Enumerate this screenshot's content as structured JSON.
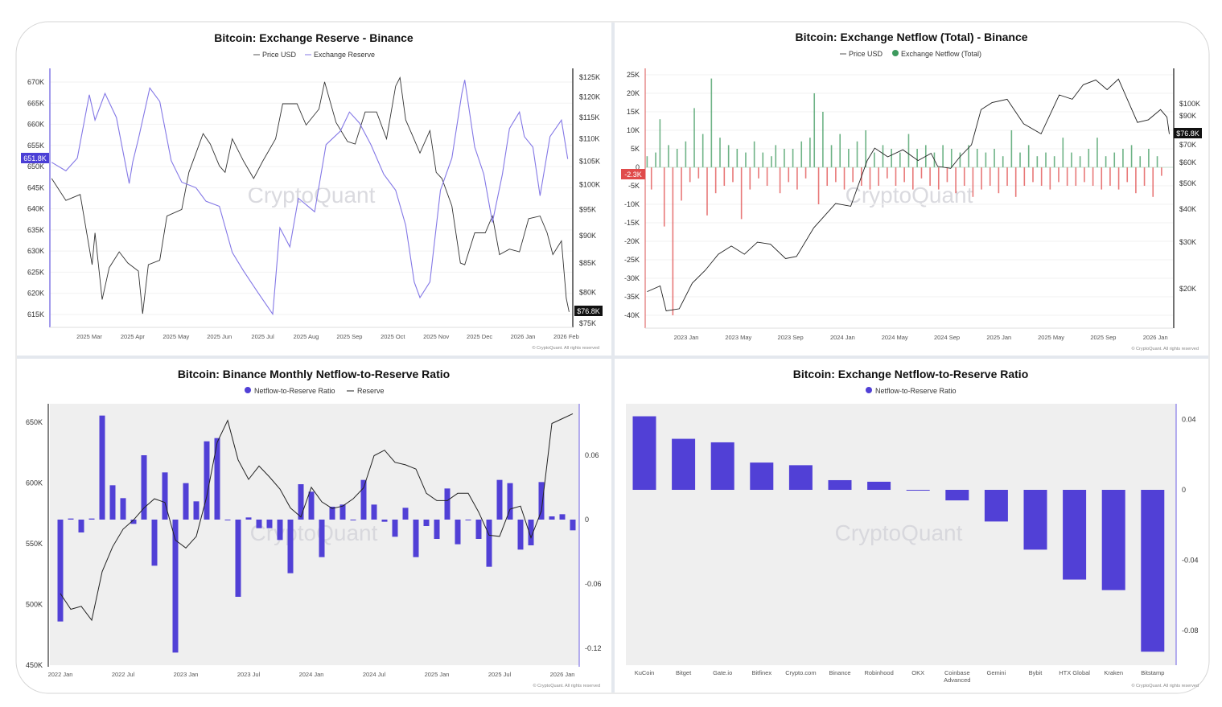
{
  "watermark": "CryptoQuant",
  "copyright": "© CryptoQuant. All rights reserved",
  "colors": {
    "purple_line": "#8478e6",
    "purple_bar": "#5140d6",
    "inflow_green": "#3d9a5e",
    "outflow_red": "#e04b4b",
    "price_line": "#222222"
  },
  "chart_data": [
    {
      "type": "line",
      "title": "Bitcoin: Exchange Reserve - Binance",
      "legend": [
        "Price USD",
        "Exchange Reserve"
      ],
      "legend_placement": "top",
      "x_ticks": [
        "2025 Mar",
        "2025 Apr",
        "2025 May",
        "2025 Jun",
        "2025 Jul",
        "2025 Aug",
        "2025 Sep",
        "2025 Oct",
        "2025 Nov",
        "2025 Dec",
        "2026 Jan",
        "2026 Feb"
      ],
      "y_left_ticks": [
        "670K",
        "665K",
        "660K",
        "655K",
        "650K",
        "645K",
        "640K",
        "635K",
        "630K",
        "625K",
        "620K",
        "615K"
      ],
      "y_right_ticks": [
        "$125K",
        "$120K",
        "$115K",
        "$110K",
        "$105K",
        "$100K",
        "$95K",
        "$90K",
        "$85K",
        "$80K",
        "$75K"
      ],
      "y_left_range_k": [
        615,
        670
      ],
      "y_right_range_k": [
        75,
        125
      ],
      "y_right_scale": "log",
      "current_reserve_label": "651.8K",
      "current_price_label": "$76.8K",
      "series": [
        {
          "name": "Exchange Reserve",
          "axis": "left",
          "unit": "K BTC",
          "points": [
            [
              "2025-02-05",
              651
            ],
            [
              "2025-02-15",
              649
            ],
            [
              "2025-02-23",
              652
            ],
            [
              "2025-03-01",
              667
            ],
            [
              "2025-03-05",
              661
            ],
            [
              "2025-03-12",
              667.3
            ],
            [
              "2025-03-20",
              661.6
            ],
            [
              "2025-03-29",
              646
            ],
            [
              "2025-04-01",
              651
            ],
            [
              "2025-04-05",
              656.5
            ],
            [
              "2025-04-13",
              668.6
            ],
            [
              "2025-04-20",
              665.4
            ],
            [
              "2025-04-28",
              651.4
            ],
            [
              "2025-05-05",
              646.3
            ],
            [
              "2025-05-15",
              645
            ],
            [
              "2025-05-22",
              641.8
            ],
            [
              "2025-06-01",
              640.6
            ],
            [
              "2025-06-10",
              629.7
            ],
            [
              "2025-06-18",
              625.3
            ],
            [
              "2025-06-28",
              620.2
            ],
            [
              "2025-07-08",
              615.1
            ],
            [
              "2025-07-13",
              635.5
            ],
            [
              "2025-07-20",
              631
            ],
            [
              "2025-07-26",
              642.5
            ],
            [
              "2025-08-07",
              639.3
            ],
            [
              "2025-08-15",
              655.2
            ],
            [
              "2025-08-25",
              658.4
            ],
            [
              "2025-09-01",
              662.9
            ],
            [
              "2025-09-08",
              660.3
            ],
            [
              "2025-09-16",
              655.2
            ],
            [
              "2025-09-25",
              648.2
            ],
            [
              "2025-10-03",
              644.4
            ],
            [
              "2025-10-10",
              636.1
            ],
            [
              "2025-10-16",
              622.7
            ],
            [
              "2025-10-20",
              619
            ],
            [
              "2025-10-27",
              622.7
            ],
            [
              "2025-11-04",
              644.4
            ],
            [
              "2025-11-12",
              652
            ],
            [
              "2025-11-19",
              667.3
            ],
            [
              "2025-11-21",
              670.5
            ],
            [
              "2025-11-28",
              654.6
            ],
            [
              "2025-12-04",
              648.2
            ],
            [
              "2025-12-10",
              636.8
            ],
            [
              "2025-12-17",
              648.2
            ],
            [
              "2025-12-22",
              659
            ],
            [
              "2025-12-29",
              662.9
            ],
            [
              "2026-01-02",
              657.1
            ],
            [
              "2026-01-08",
              654.6
            ],
            [
              "2026-01-13",
              643.1
            ],
            [
              "2026-01-20",
              657.1
            ],
            [
              "2026-01-28",
              661
            ],
            [
              "2026-02-02",
              651.8
            ]
          ]
        },
        {
          "name": "Price USD",
          "axis": "right",
          "unit": "K USD",
          "points": [
            [
              "2025-02-05",
              101.3
            ],
            [
              "2025-02-15",
              96.8
            ],
            [
              "2025-02-25",
              98
            ],
            [
              "2025-03-03",
              84.7
            ],
            [
              "2025-03-05",
              90.5
            ],
            [
              "2025-03-10",
              78.8
            ],
            [
              "2025-03-15",
              84.2
            ],
            [
              "2025-03-22",
              87
            ],
            [
              "2025-03-28",
              85
            ],
            [
              "2025-04-05",
              83.6
            ],
            [
              "2025-04-08",
              76.5
            ],
            [
              "2025-04-12",
              84.7
            ],
            [
              "2025-04-20",
              85.5
            ],
            [
              "2025-04-25",
              93.7
            ],
            [
              "2025-05-05",
              95
            ],
            [
              "2025-05-10",
              102.6
            ],
            [
              "2025-05-20",
              111.2
            ],
            [
              "2025-05-25",
              108.8
            ],
            [
              "2025-06-01",
              104
            ],
            [
              "2025-06-05",
              102.6
            ],
            [
              "2025-06-10",
              110
            ],
            [
              "2025-06-18",
              105
            ],
            [
              "2025-06-25",
              101.3
            ],
            [
              "2025-07-01",
              105
            ],
            [
              "2025-07-10",
              110
            ],
            [
              "2025-07-15",
              118.3
            ],
            [
              "2025-07-25",
              118.3
            ],
            [
              "2025-08-01",
              113.2
            ],
            [
              "2025-08-10",
              117
            ],
            [
              "2025-08-14",
              123.8
            ],
            [
              "2025-08-22",
              113.8
            ],
            [
              "2025-08-30",
              109.4
            ],
            [
              "2025-09-05",
              108.8
            ],
            [
              "2025-09-12",
              116.3
            ],
            [
              "2025-09-20",
              116.3
            ],
            [
              "2025-09-27",
              110
            ],
            [
              "2025-10-03",
              122.7
            ],
            [
              "2025-10-06",
              124.9
            ],
            [
              "2025-10-10",
              114.4
            ],
            [
              "2025-10-15",
              110.6
            ],
            [
              "2025-10-20",
              106.8
            ],
            [
              "2025-10-27",
              111.9
            ],
            [
              "2025-11-01",
              102.6
            ],
            [
              "2025-11-05",
              101.3
            ],
            [
              "2025-11-12",
              95.7
            ],
            [
              "2025-11-18",
              85
            ],
            [
              "2025-11-21",
              84.7
            ],
            [
              "2025-11-28",
              90.5
            ],
            [
              "2025-12-05",
              90.5
            ],
            [
              "2025-12-10",
              93.7
            ],
            [
              "2025-12-15",
              86.5
            ],
            [
              "2025-12-22",
              87.5
            ],
            [
              "2025-12-29",
              87
            ],
            [
              "2026-01-05",
              93.2
            ],
            [
              "2026-01-13",
              93.7
            ],
            [
              "2026-01-18",
              90.5
            ],
            [
              "2026-01-22",
              86.5
            ],
            [
              "2026-01-28",
              89
            ],
            [
              "2026-02-01",
              79
            ],
            [
              "2026-02-03",
              76.8
            ]
          ]
        }
      ]
    },
    {
      "type": "bar+line",
      "title": "Bitcoin: Exchange Netflow (Total) - Binance",
      "legend": [
        "Price USD",
        "Exchange Netflow (Total)"
      ],
      "legend_placement": "top",
      "x_ticks": [
        "2023 Jan",
        "2023 May",
        "2023 Sep",
        "2024 Jan",
        "2024 May",
        "2024 Sep",
        "2025 Jan",
        "2025 May",
        "2025 Sep",
        "2026 Jan"
      ],
      "y_left_ticks": [
        "25K",
        "20K",
        "15K",
        "10K",
        "5K",
        "0",
        "-5K",
        "-10K",
        "-15K",
        "-20K",
        "-25K",
        "-30K",
        "-35K",
        "-40K"
      ],
      "y_right_ticks": [
        "$100K",
        "$90K",
        "$70K",
        "$60K",
        "$50K",
        "$40K",
        "$30K",
        "$20K"
      ],
      "y_left_range_k": [
        -40,
        25
      ],
      "y_right_scale": "log",
      "current_netflow_label": "-2.3K",
      "current_price_label": "$76.8K",
      "netflow": {
        "name": "Exchange Netflow (Total)",
        "unit": "K BTC",
        "start": "2022-10-01",
        "step_days": 10,
        "values": [
          3,
          -6,
          4,
          13,
          -16,
          6,
          -40,
          5,
          -9,
          7,
          -4,
          16,
          -3,
          9,
          -13,
          24,
          -7,
          8,
          -5,
          6,
          -4,
          5,
          -14,
          4,
          -6,
          7,
          -3,
          4,
          -5,
          3,
          6,
          -7,
          5,
          -4,
          5,
          -6,
          7,
          -3,
          8,
          20,
          -10,
          15,
          -5,
          6,
          -4,
          9,
          -6,
          5,
          -4,
          7,
          -5,
          10,
          -6,
          4,
          -5,
          6,
          -3,
          5,
          -5,
          4,
          -4,
          9,
          -6,
          5,
          -3,
          6,
          -5,
          4,
          -6,
          6,
          -4,
          5,
          -7,
          4,
          -5,
          6,
          -8,
          5,
          -6,
          4,
          -5,
          5,
          -7,
          3,
          -5,
          10,
          -8,
          4,
          -5,
          6,
          -4,
          3,
          -5,
          4,
          -6,
          3,
          -4,
          8,
          -5,
          4,
          -5,
          3,
          -4,
          5,
          -5,
          8,
          -6,
          3,
          -5,
          4,
          -6,
          5,
          -4,
          6,
          -7,
          3,
          -5,
          5,
          -8,
          3,
          -2.3
        ]
      },
      "price": {
        "name": "Price USD",
        "unit": "K USD",
        "points": [
          [
            "2022-10-01",
            19.5
          ],
          [
            "2022-11-01",
            20.5
          ],
          [
            "2022-11-15",
            16.5
          ],
          [
            "2022-12-15",
            16.8
          ],
          [
            "2023-01-15",
            21
          ],
          [
            "2023-02-15",
            23.5
          ],
          [
            "2023-03-15",
            27
          ],
          [
            "2023-04-15",
            29
          ],
          [
            "2023-05-15",
            27
          ],
          [
            "2023-06-15",
            30
          ],
          [
            "2023-07-15",
            29.5
          ],
          [
            "2023-08-20",
            26
          ],
          [
            "2023-09-15",
            26.5
          ],
          [
            "2023-10-25",
            34
          ],
          [
            "2023-11-15",
            37
          ],
          [
            "2023-12-15",
            42
          ],
          [
            "2024-01-20",
            41
          ],
          [
            "2024-02-28",
            61
          ],
          [
            "2024-03-15",
            68
          ],
          [
            "2024-04-15",
            63
          ],
          [
            "2024-05-20",
            67
          ],
          [
            "2024-06-25",
            61
          ],
          [
            "2024-07-25",
            65
          ],
          [
            "2024-08-10",
            58
          ],
          [
            "2024-09-10",
            57
          ],
          [
            "2024-10-01",
            63
          ],
          [
            "2024-10-28",
            70
          ],
          [
            "2024-11-20",
            95
          ],
          [
            "2024-12-15",
            101
          ],
          [
            "2025-01-20",
            104
          ],
          [
            "2025-02-28",
            84
          ],
          [
            "2025-04-08",
            77
          ],
          [
            "2025-05-20",
            108
          ],
          [
            "2025-06-20",
            104
          ],
          [
            "2025-07-15",
            118
          ],
          [
            "2025-08-14",
            123
          ],
          [
            "2025-09-10",
            113
          ],
          [
            "2025-10-06",
            124
          ],
          [
            "2025-11-20",
            85
          ],
          [
            "2025-12-15",
            87
          ],
          [
            "2026-01-13",
            95
          ],
          [
            "2026-01-28",
            89
          ],
          [
            "2026-02-03",
            76.8
          ]
        ]
      }
    },
    {
      "type": "bar+line",
      "title": "Bitcoin: Binance Monthly Netflow-to-Reserve Ratio",
      "legend": [
        "Netflow-to-Reserve Ratio",
        "Reserve"
      ],
      "legend_placement": "top",
      "x_ticks": [
        "2022 Jan",
        "2022 Jul",
        "2023 Jan",
        "2023 Jul",
        "2024 Jan",
        "2024 Jul",
        "2025 Jan",
        "2025 Jul",
        "2026 Jan"
      ],
      "y_left_ticks": [
        "650K",
        "600K",
        "550K",
        "500K",
        "450K"
      ],
      "y_right_ticks": [
        "0.06",
        "0",
        "-0.06",
        "-0.12"
      ],
      "y_left_range_k": [
        450,
        665
      ],
      "y_right_range": [
        -0.13,
        0.1
      ],
      "start_month": "2022-01",
      "ratio": [
        -0.095,
        0.001,
        -0.012,
        0.001,
        0.097,
        0.032,
        0.02,
        -0.004,
        0.06,
        -0.043,
        0.044,
        -0.124,
        0.034,
        0.017,
        0.073,
        0.076,
        -0.0005,
        -0.072,
        0.002,
        -0.008,
        -0.008,
        -0.019,
        -0.05,
        0.033,
        0.026,
        -0.035,
        0.012,
        0.014,
        -0.0005,
        0.037,
        0.014,
        -0.002,
        -0.016,
        0.011,
        -0.035,
        -0.006,
        -0.018,
        0.029,
        -0.023,
        -0.0005,
        -0.018,
        -0.044,
        0.037,
        0.034,
        -0.028,
        -0.024,
        0.035,
        0.003,
        0.005,
        -0.01
      ],
      "reserve_k": [
        509,
        496,
        498.5,
        487,
        527,
        547.5,
        562,
        569.6,
        579.5,
        587,
        584,
        553,
        546.5,
        556,
        589,
        633.5,
        651.5,
        619,
        603,
        614,
        605,
        595,
        579.5,
        572,
        596.5,
        584.5,
        579,
        581,
        587,
        596,
        622.5,
        627,
        617,
        615,
        611.5,
        591.5,
        585.5,
        585.5,
        591.5,
        591.5,
        576,
        557,
        556,
        578.5,
        581,
        555,
        577,
        649,
        653,
        657
      ]
    },
    {
      "type": "bar",
      "title": "Bitcoin: Exchange Netflow-to-Reserve Ratio",
      "legend": [
        "Netflow-to-Reserve Ratio"
      ],
      "legend_placement": "top",
      "categories": [
        "KuCoin",
        "Bitget",
        "Gate.io",
        "Bitfinex",
        "Crypto.com",
        "Binance",
        "Robinhood",
        "OKX",
        "Coinbase Advanced",
        "Gemini",
        "Bybit",
        "HTX Global",
        "Kraken",
        "Bitstamp"
      ],
      "values": [
        0.0418,
        0.029,
        0.027,
        0.0155,
        0.014,
        0.0055,
        0.0046,
        -0.0003,
        -0.006,
        -0.018,
        -0.034,
        -0.051,
        -0.057,
        -0.092
      ],
      "y_right_ticks": [
        "0.04",
        "0",
        "-0.04",
        "-0.08"
      ],
      "y_range": [
        -0.1,
        0.05
      ]
    }
  ]
}
